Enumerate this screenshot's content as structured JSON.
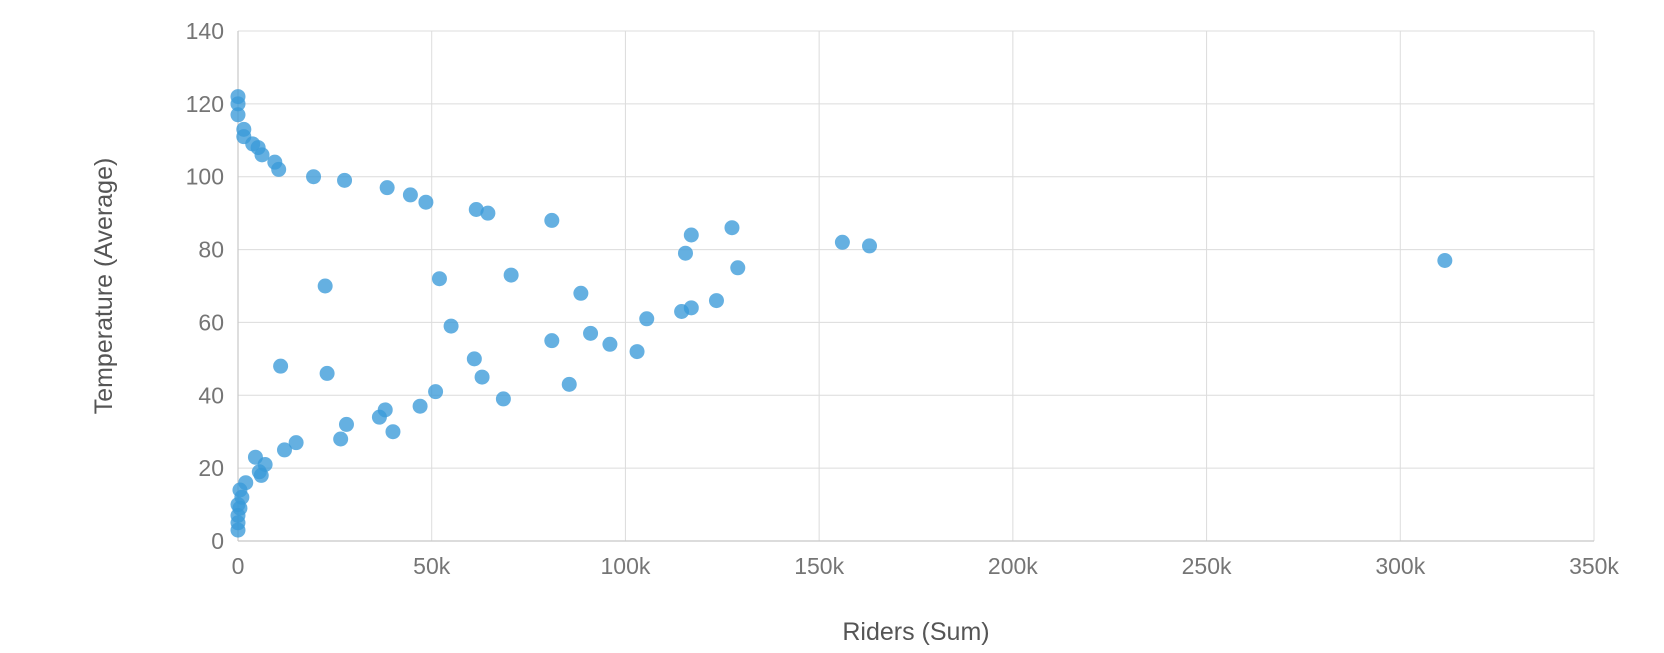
{
  "chart_data": {
    "type": "scatter",
    "title": "",
    "xlabel": "Riders (Sum)",
    "ylabel": "Temperature (Average)",
    "xlim": [
      0,
      350000
    ],
    "ylim": [
      0,
      140
    ],
    "x_ticks": [
      0,
      50000,
      100000,
      150000,
      200000,
      250000,
      300000,
      350000
    ],
    "x_tick_labels": [
      "0",
      "50k",
      "100k",
      "150k",
      "200k",
      "250k",
      "300k",
      "350k"
    ],
    "y_ticks": [
      0,
      20,
      40,
      60,
      80,
      100,
      120,
      140
    ],
    "y_tick_labels": [
      "0",
      "20",
      "40",
      "60",
      "80",
      "100",
      "120",
      "140"
    ],
    "grid": true,
    "legend": "none",
    "point_color": "#3a9ad9",
    "series": [
      {
        "points": [
          [
            0,
            122
          ],
          [
            0,
            120
          ],
          [
            0,
            117
          ],
          [
            1500,
            113
          ],
          [
            1500,
            111
          ],
          [
            3800,
            109
          ],
          [
            5200,
            108
          ],
          [
            6200,
            106
          ],
          [
            9500,
            104
          ],
          [
            10500,
            102
          ],
          [
            19500,
            100
          ],
          [
            27500,
            99
          ],
          [
            38500,
            97
          ],
          [
            44500,
            95
          ],
          [
            48500,
            93
          ],
          [
            61500,
            91
          ],
          [
            64500,
            90
          ],
          [
            81000,
            88
          ],
          [
            117000,
            84
          ],
          [
            127500,
            86
          ],
          [
            115500,
            79
          ],
          [
            156000,
            82
          ],
          [
            163000,
            81
          ],
          [
            311500,
            77
          ],
          [
            129000,
            75
          ],
          [
            22500,
            70
          ],
          [
            52000,
            72
          ],
          [
            70500,
            73
          ],
          [
            88500,
            68
          ],
          [
            123500,
            66
          ],
          [
            117000,
            64
          ],
          [
            114500,
            63
          ],
          [
            105500,
            61
          ],
          [
            55000,
            59
          ],
          [
            91000,
            57
          ],
          [
            81000,
            55
          ],
          [
            96000,
            54
          ],
          [
            103000,
            52
          ],
          [
            61000,
            50
          ],
          [
            11000,
            48
          ],
          [
            23000,
            46
          ],
          [
            63000,
            45
          ],
          [
            85500,
            43
          ],
          [
            51000,
            41
          ],
          [
            68500,
            39
          ],
          [
            47000,
            37
          ],
          [
            38000,
            36
          ],
          [
            36500,
            34
          ],
          [
            28000,
            32
          ],
          [
            40000,
            30
          ],
          [
            26500,
            28
          ],
          [
            15000,
            27
          ],
          [
            12000,
            25
          ],
          [
            4500,
            23
          ],
          [
            7000,
            21
          ],
          [
            5500,
            19
          ],
          [
            6000,
            18
          ],
          [
            2000,
            16
          ],
          [
            500,
            14
          ],
          [
            1000,
            12
          ],
          [
            0,
            10
          ],
          [
            500,
            9
          ],
          [
            0,
            7
          ],
          [
            0,
            5
          ],
          [
            0,
            3
          ]
        ]
      }
    ]
  }
}
